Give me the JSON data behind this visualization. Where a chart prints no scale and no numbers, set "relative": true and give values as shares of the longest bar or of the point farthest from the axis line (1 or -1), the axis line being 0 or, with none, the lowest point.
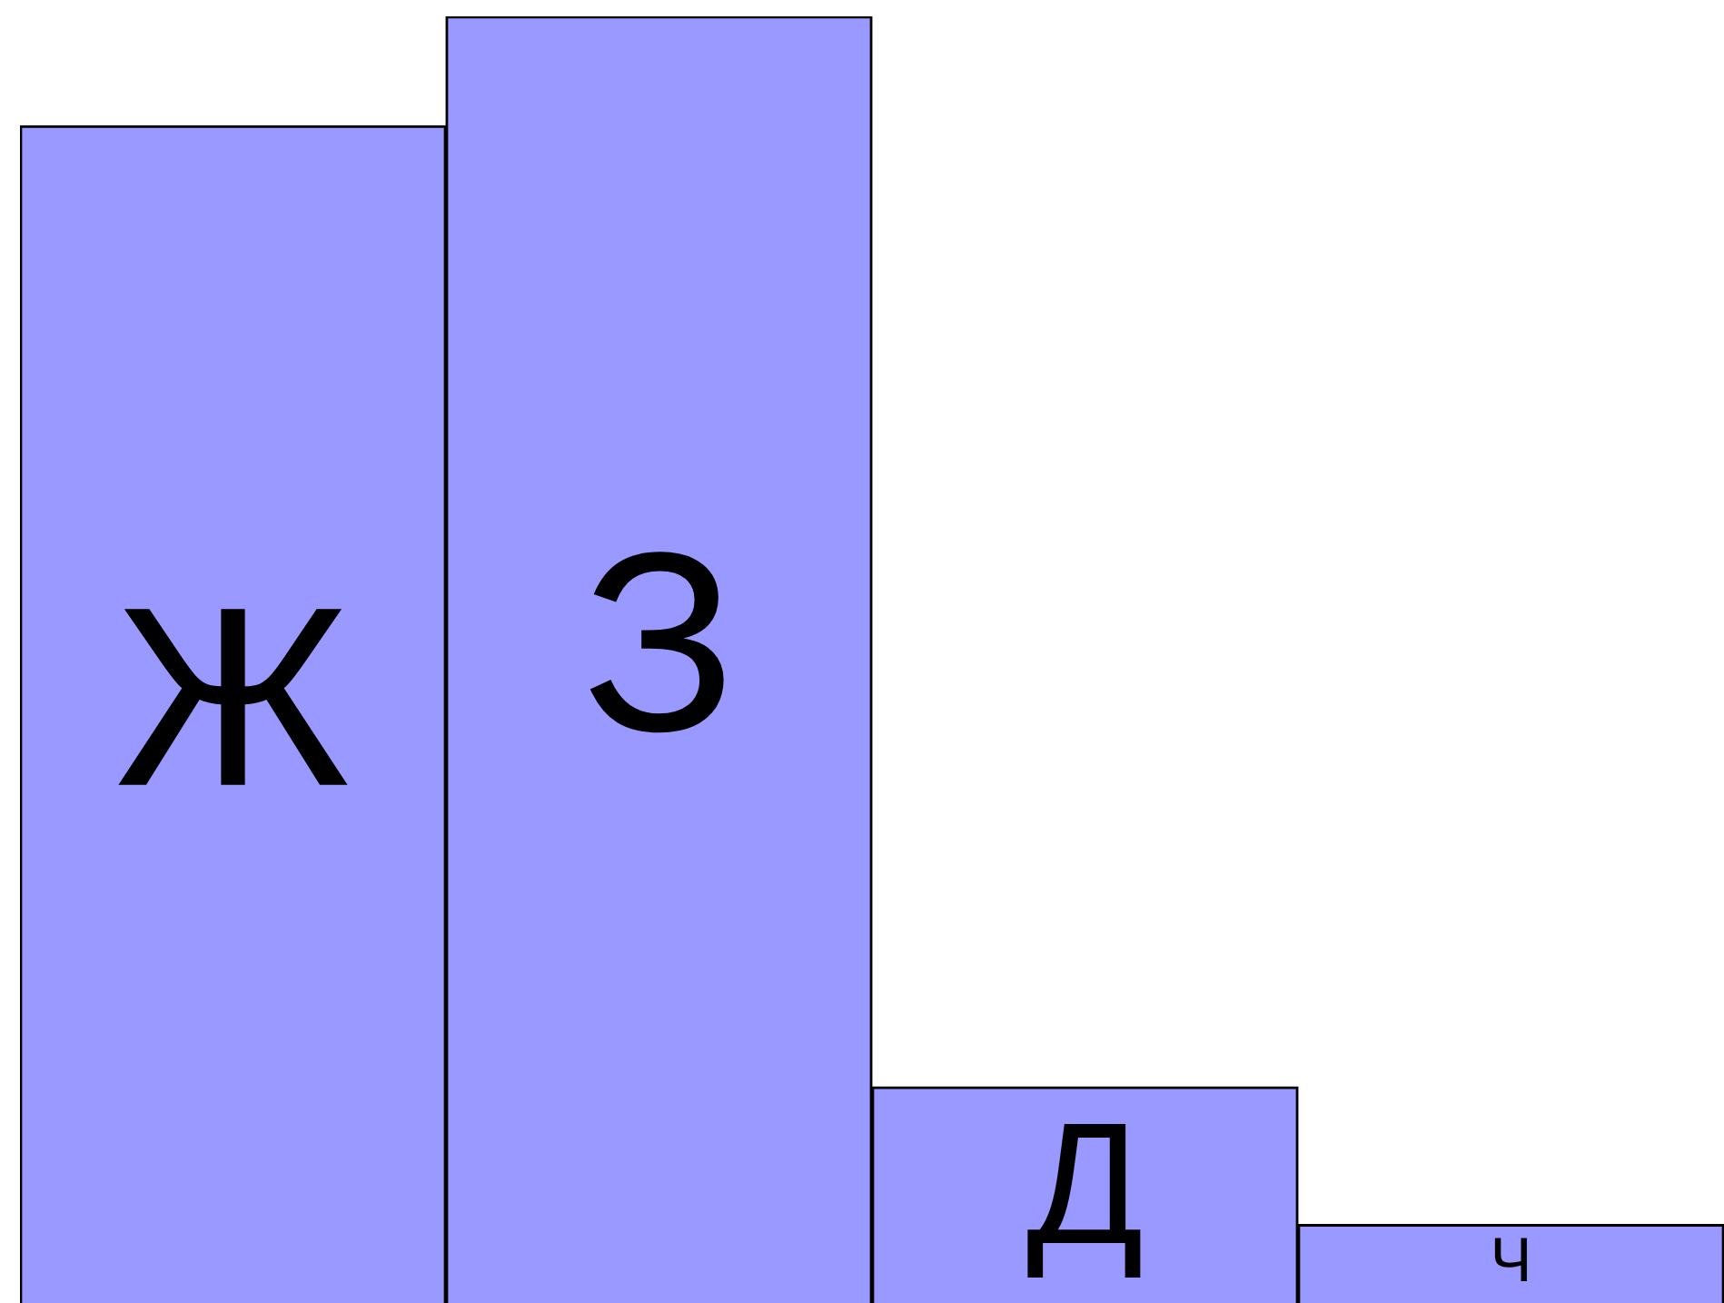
{
  "chart_data": {
    "type": "bar",
    "relative": true,
    "categories": [
      "Ж",
      "З",
      "Д",
      "Ч"
    ],
    "values": [
      0.915,
      1,
      0.168,
      0.061
    ],
    "color": "#9999ff",
    "legend": false
  }
}
